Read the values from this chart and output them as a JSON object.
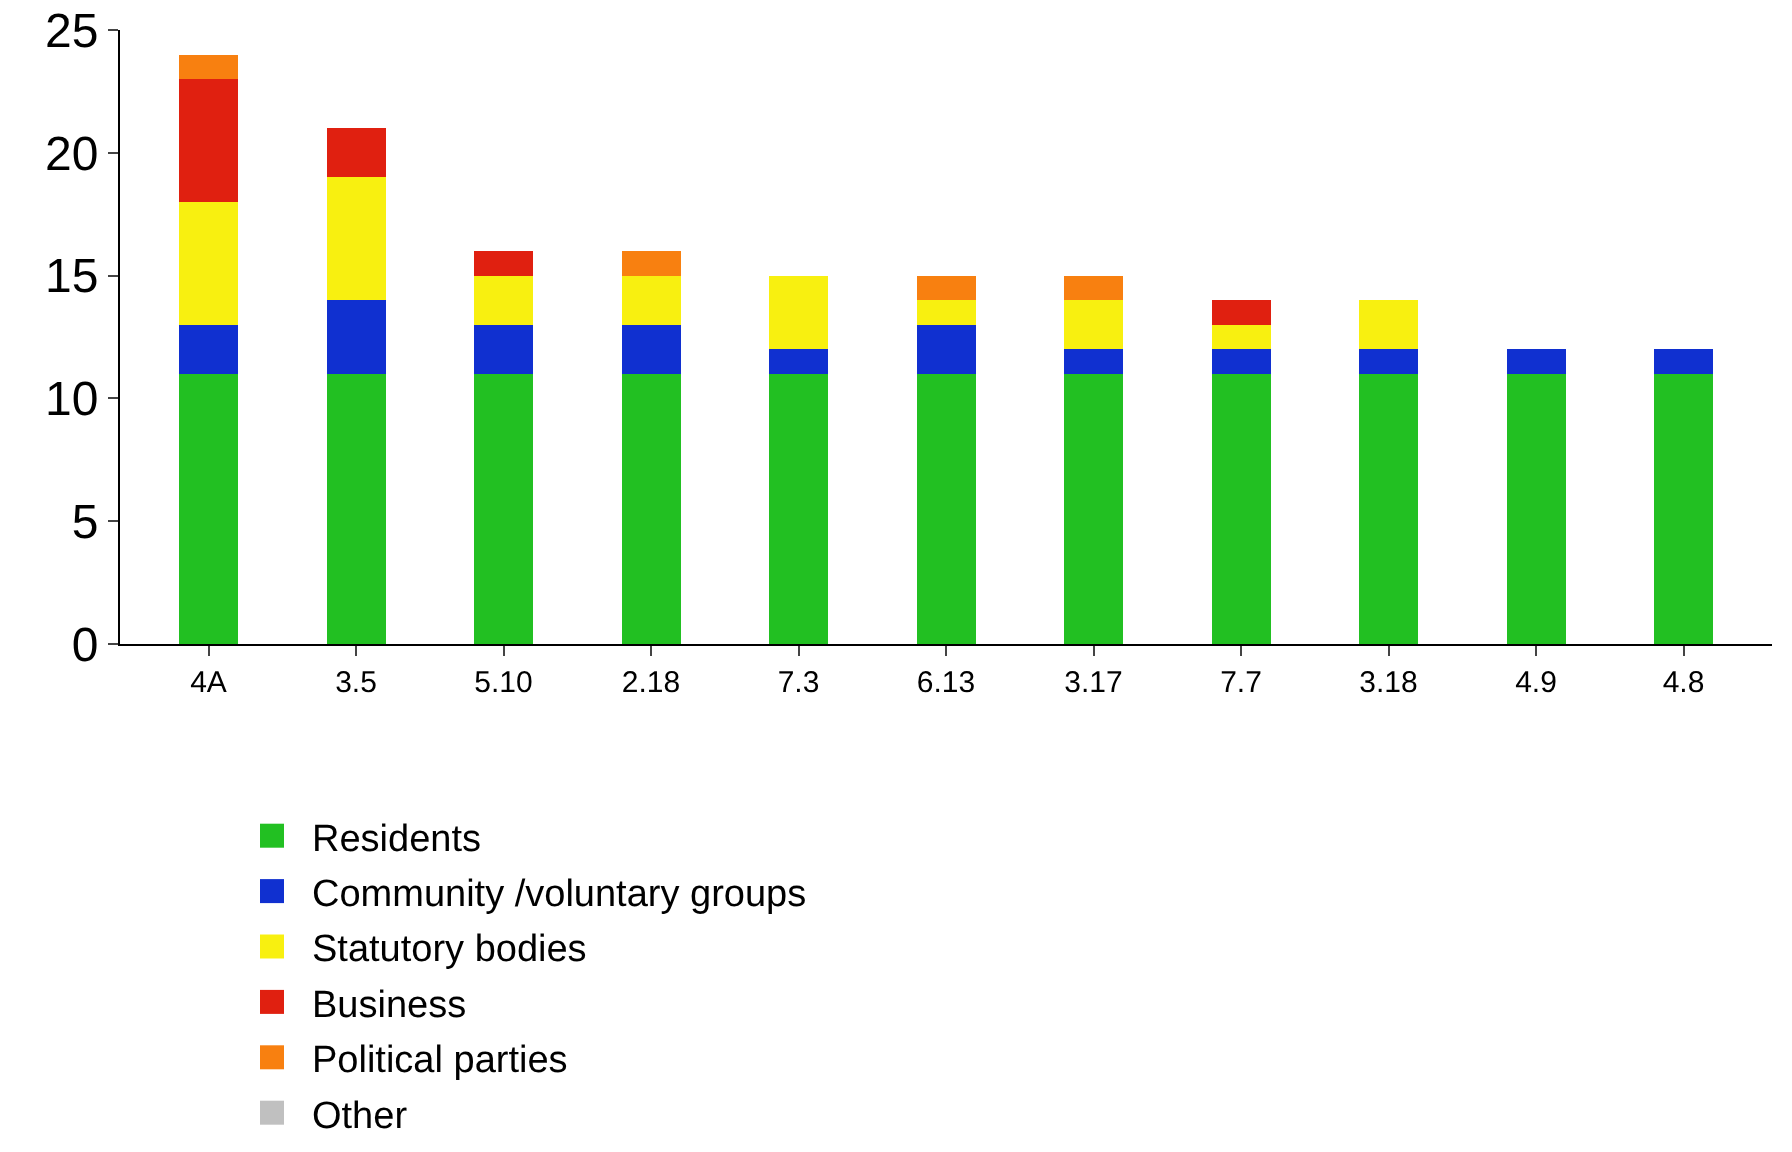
{
  "chart_data": {
    "type": "bar",
    "stacked": true,
    "categories": [
      "4A",
      "3.5",
      "5.10",
      "2.18",
      "7.3",
      "6.13",
      "3.17",
      "7.7",
      "3.18",
      "4.9",
      "4.8"
    ],
    "series": [
      {
        "name": "Residents",
        "color": "#22c022",
        "values": [
          11,
          11,
          11,
          11,
          11,
          11,
          11,
          11,
          11,
          11,
          11
        ]
      },
      {
        "name": "Community /voluntary groups",
        "color": "#1030d0",
        "values": [
          2,
          3,
          2,
          2,
          1,
          2,
          1,
          1,
          1,
          1,
          1
        ]
      },
      {
        "name": "Statutory bodies",
        "color": "#f8f010",
        "values": [
          5,
          5,
          2,
          2,
          3,
          1,
          2,
          1,
          2,
          0,
          0
        ]
      },
      {
        "name": "Business",
        "color": "#e02010",
        "values": [
          5,
          2,
          1,
          0,
          0,
          0,
          0,
          1,
          0,
          0,
          0
        ]
      },
      {
        "name": "Political parties",
        "color": "#f88010",
        "values": [
          1,
          0,
          0,
          1,
          0,
          1,
          1,
          0,
          0,
          0,
          0
        ]
      },
      {
        "name": "Other",
        "color": "#c0c0c0",
        "values": [
          0,
          0,
          0,
          0,
          0,
          0,
          0,
          0,
          0,
          0,
          0
        ]
      }
    ],
    "ylim": [
      0,
      25
    ],
    "yticks": [
      0,
      5,
      10,
      15,
      20,
      25
    ],
    "grid": false,
    "legend": "bottom"
  }
}
